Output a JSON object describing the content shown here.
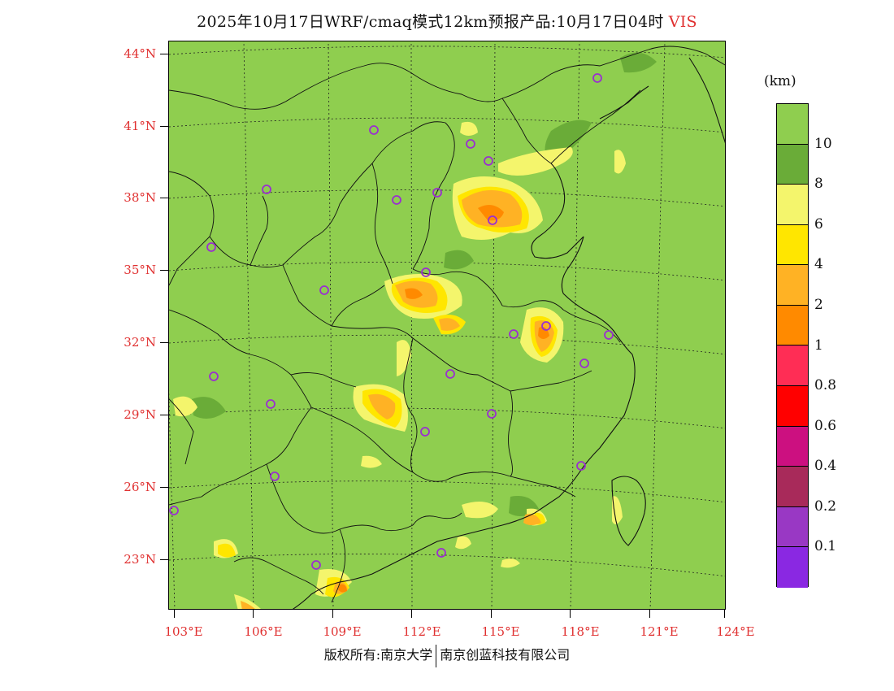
{
  "title": {
    "text": "2025年10月17日WRF/cmaq模式12km预报产品:10月17日04时",
    "variable": "VIS"
  },
  "lat_labels": [
    "44°N",
    "41°N",
    "38°N",
    "35°N",
    "32°N",
    "29°N",
    "26°N",
    "23°N"
  ],
  "lon_labels": [
    "103°E",
    "106°E",
    "109°E",
    "112°E",
    "115°E",
    "118°E",
    "121°E",
    "124°E"
  ],
  "colorbar": {
    "unit": "(km)",
    "colors": [
      "#8fce4f",
      "#6aac38",
      "#f4f56c",
      "#ffe600",
      "#ffb224",
      "#ff8a00",
      "#ff2d55",
      "#ff0000",
      "#cc1080",
      "#a82a5a",
      "#9938c4",
      "#8a28e2"
    ],
    "labels": [
      "10",
      "8",
      "6",
      "4",
      "2",
      "1",
      "0.8",
      "0.6",
      "0.4",
      "0.2",
      "0.1"
    ]
  },
  "colors": {
    "land_background": "#8fce4f",
    "accent_text": "#e03030",
    "station_marker": "#9a2fd0"
  },
  "footer": {
    "copyright": "版权所有:南京大学",
    "company": "南京创蓝科技有限公司"
  }
}
